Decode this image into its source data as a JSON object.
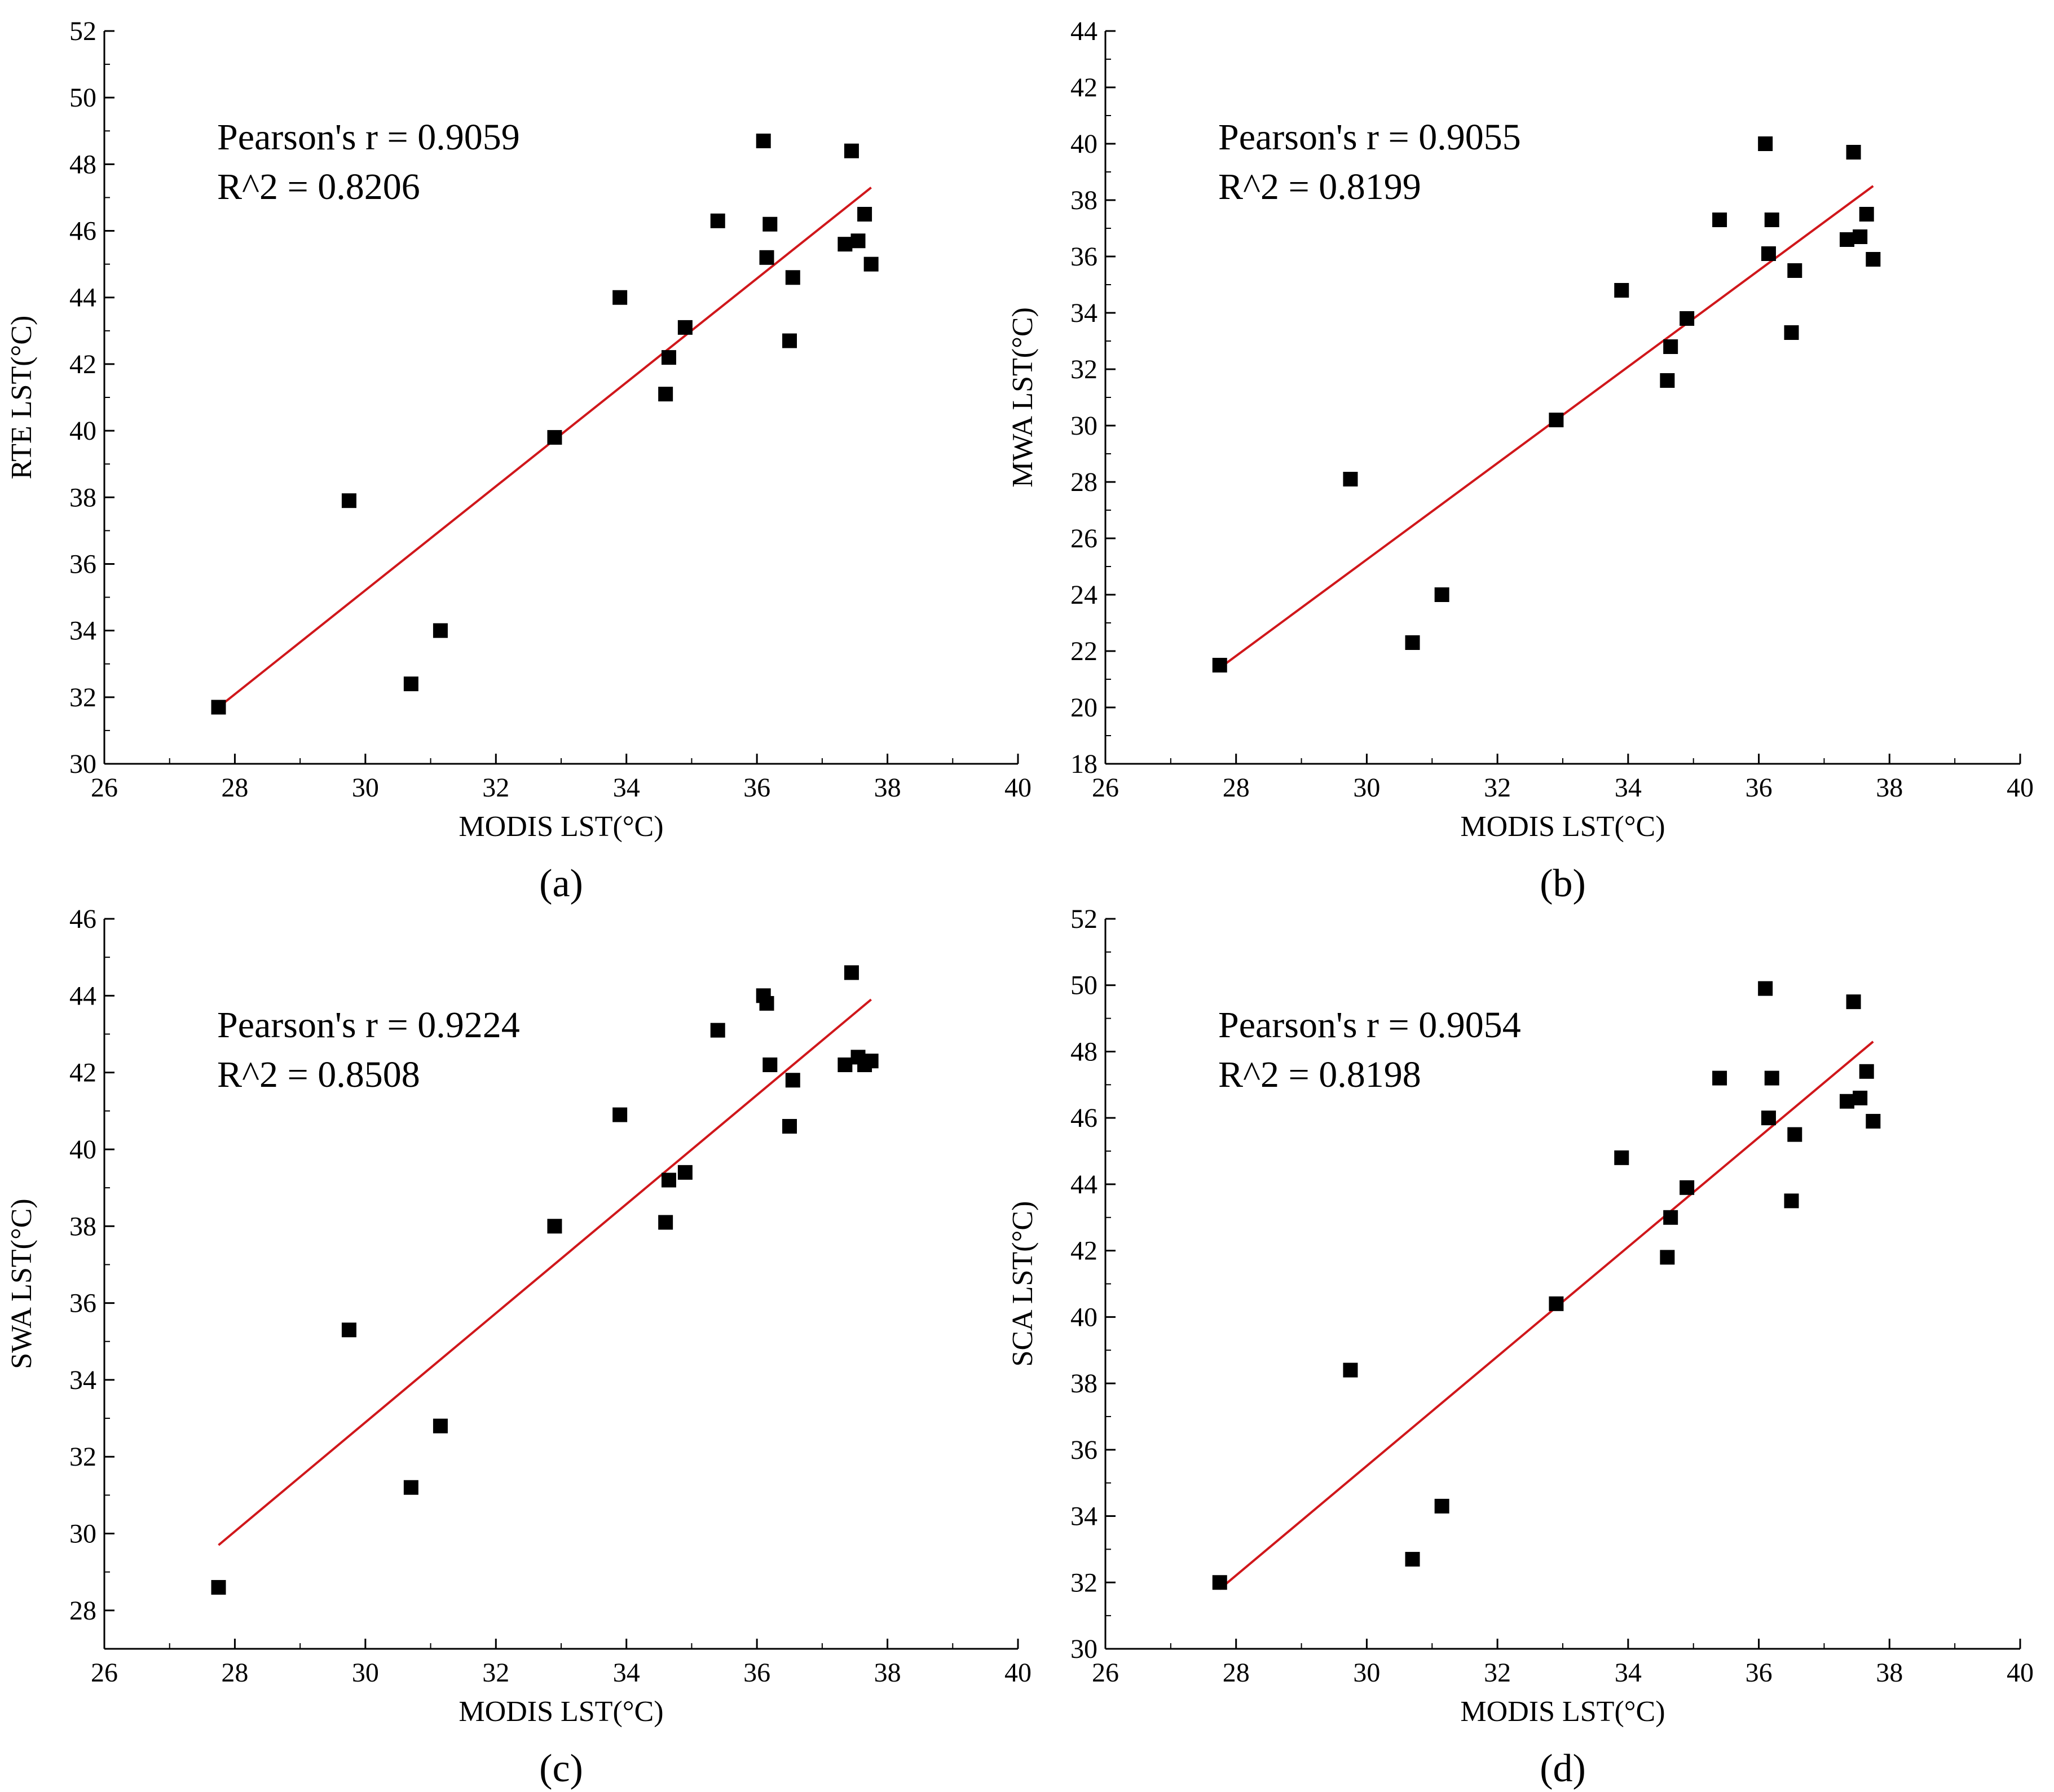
{
  "colors": {
    "fit_line": "#d0171b",
    "marker": "#000000",
    "axis": "#000000"
  },
  "chart_data": [
    {
      "type": "scatter",
      "panel": "a",
      "caption": "(a)",
      "xlabel": "MODIS LST(°C)",
      "ylabel": "RTE LST(°C)",
      "xlim": [
        26,
        40
      ],
      "ylim": [
        30,
        52
      ],
      "xticks": [
        26,
        28,
        30,
        32,
        34,
        36,
        38,
        40
      ],
      "yticks": [
        30,
        32,
        34,
        36,
        38,
        40,
        42,
        44,
        46,
        48,
        50,
        52
      ],
      "stats": [
        "Pearson's r = 0.9059",
        "R^2 = 0.8206"
      ],
      "points": [
        [
          27.75,
          31.7
        ],
        [
          29.75,
          37.9
        ],
        [
          30.7,
          32.4
        ],
        [
          31.15,
          34.0
        ],
        [
          32.9,
          39.8
        ],
        [
          33.9,
          44.0
        ],
        [
          34.6,
          41.1
        ],
        [
          34.65,
          42.2
        ],
        [
          34.9,
          43.1
        ],
        [
          35.4,
          46.3
        ],
        [
          36.1,
          48.7
        ],
        [
          36.15,
          45.2
        ],
        [
          36.2,
          46.2
        ],
        [
          36.5,
          42.7
        ],
        [
          36.55,
          44.6
        ],
        [
          37.35,
          45.6
        ],
        [
          37.45,
          48.4
        ],
        [
          37.55,
          45.7
        ],
        [
          37.65,
          46.5
        ],
        [
          37.75,
          45.0
        ]
      ],
      "fit_line": [
        [
          27.75,
          31.7
        ],
        [
          37.75,
          47.3
        ]
      ]
    },
    {
      "type": "scatter",
      "panel": "b",
      "caption": "(b)",
      "xlabel": "MODIS LST(°C)",
      "ylabel": "MWA LST(°C)",
      "xlim": [
        26,
        40
      ],
      "ylim": [
        18,
        44
      ],
      "xticks": [
        26,
        28,
        30,
        32,
        34,
        36,
        38,
        40
      ],
      "yticks": [
        18,
        20,
        22,
        24,
        26,
        28,
        30,
        32,
        34,
        36,
        38,
        40,
        42,
        44
      ],
      "stats": [
        "Pearson's r = 0.9055",
        "R^2 = 0.8199"
      ],
      "points": [
        [
          27.75,
          21.5
        ],
        [
          29.75,
          28.1
        ],
        [
          30.7,
          22.3
        ],
        [
          31.15,
          24.0
        ],
        [
          32.9,
          30.2
        ],
        [
          33.9,
          34.8
        ],
        [
          34.6,
          31.6
        ],
        [
          34.65,
          32.8
        ],
        [
          34.9,
          33.8
        ],
        [
          35.4,
          37.3
        ],
        [
          36.1,
          40.0
        ],
        [
          36.15,
          36.1
        ],
        [
          36.2,
          37.3
        ],
        [
          36.5,
          33.3
        ],
        [
          36.55,
          35.5
        ],
        [
          37.35,
          36.6
        ],
        [
          37.45,
          39.7
        ],
        [
          37.55,
          36.7
        ],
        [
          37.65,
          37.5
        ],
        [
          37.75,
          35.9
        ]
      ],
      "fit_line": [
        [
          27.75,
          21.4
        ],
        [
          37.75,
          38.5
        ]
      ]
    },
    {
      "type": "scatter",
      "panel": "c",
      "caption": "(c)",
      "xlabel": "MODIS LST(°C)",
      "ylabel": "SWA LST(°C)",
      "xlim": [
        26,
        40
      ],
      "ylim": [
        27,
        46
      ],
      "xticks": [
        26,
        28,
        30,
        32,
        34,
        36,
        38,
        40
      ],
      "yticks": [
        28,
        30,
        32,
        34,
        36,
        38,
        40,
        42,
        44,
        46
      ],
      "stats": [
        "Pearson's r = 0.9224",
        "R^2 = 0.8508"
      ],
      "points": [
        [
          27.75,
          28.6
        ],
        [
          29.75,
          35.3
        ],
        [
          30.7,
          31.2
        ],
        [
          31.15,
          32.8
        ],
        [
          32.9,
          38.0
        ],
        [
          33.9,
          40.9
        ],
        [
          34.6,
          38.1
        ],
        [
          34.65,
          39.2
        ],
        [
          34.9,
          39.4
        ],
        [
          35.4,
          43.1
        ],
        [
          36.1,
          44.0
        ],
        [
          36.15,
          43.8
        ],
        [
          36.2,
          42.2
        ],
        [
          36.5,
          40.6
        ],
        [
          36.55,
          41.8
        ],
        [
          37.35,
          42.2
        ],
        [
          37.45,
          44.6
        ],
        [
          37.55,
          42.4
        ],
        [
          37.65,
          42.2
        ],
        [
          37.75,
          42.3
        ]
      ],
      "fit_line": [
        [
          27.75,
          29.7
        ],
        [
          37.75,
          43.9
        ]
      ]
    },
    {
      "type": "scatter",
      "panel": "d",
      "caption": "(d)",
      "xlabel": "MODIS LST(°C)",
      "ylabel": "SCA LST(°C)",
      "xlim": [
        26,
        40
      ],
      "ylim": [
        30,
        52
      ],
      "xticks": [
        26,
        28,
        30,
        32,
        34,
        36,
        38,
        40
      ],
      "yticks": [
        30,
        32,
        34,
        36,
        38,
        40,
        42,
        44,
        46,
        48,
        50,
        52
      ],
      "stats": [
        "Pearson's r = 0.9054",
        "R^2 = 0.8198"
      ],
      "points": [
        [
          27.75,
          32.0
        ],
        [
          29.75,
          38.4
        ],
        [
          30.7,
          32.7
        ],
        [
          31.15,
          34.3
        ],
        [
          32.9,
          40.4
        ],
        [
          33.9,
          44.8
        ],
        [
          34.6,
          41.8
        ],
        [
          34.65,
          43.0
        ],
        [
          34.9,
          43.9
        ],
        [
          35.4,
          47.2
        ],
        [
          36.1,
          49.9
        ],
        [
          36.15,
          46.0
        ],
        [
          36.2,
          47.2
        ],
        [
          36.5,
          43.5
        ],
        [
          36.55,
          45.5
        ],
        [
          37.35,
          46.5
        ],
        [
          37.45,
          49.5
        ],
        [
          37.55,
          46.6
        ],
        [
          37.65,
          47.4
        ],
        [
          37.75,
          45.9
        ]
      ],
      "fit_line": [
        [
          27.75,
          31.8
        ],
        [
          37.75,
          48.3
        ]
      ]
    }
  ]
}
